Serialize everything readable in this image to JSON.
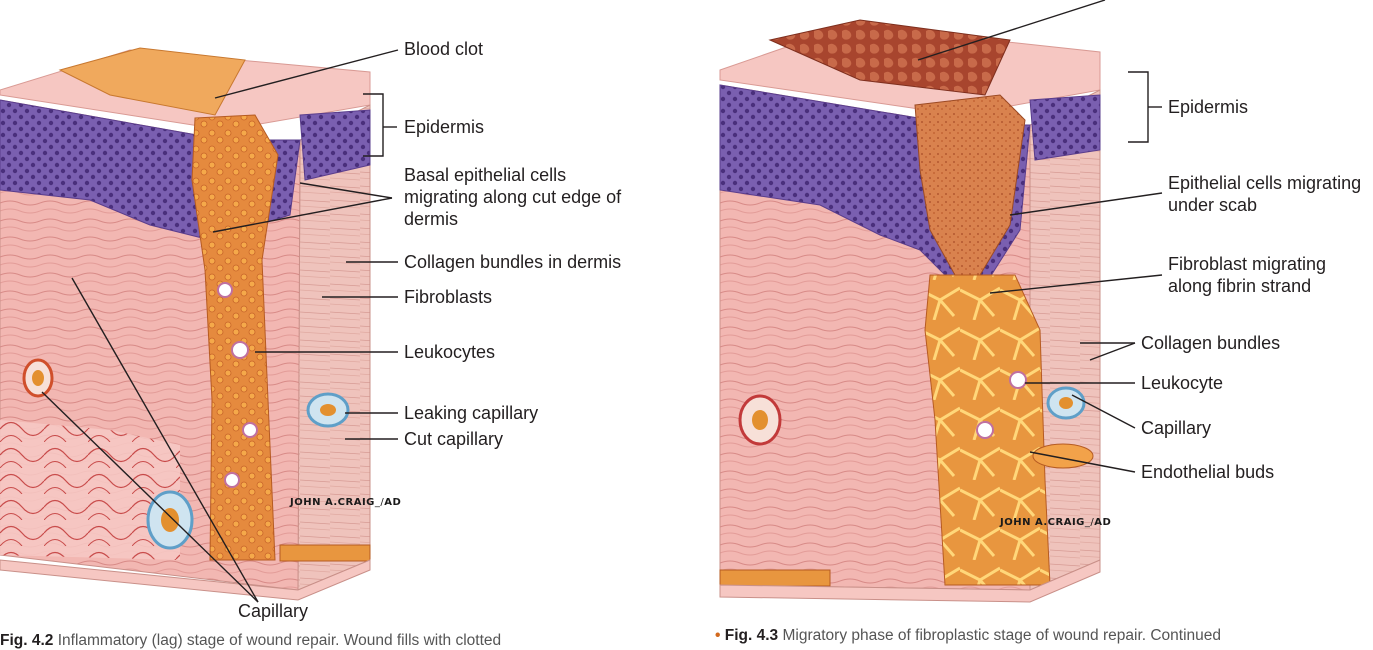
{
  "left_figure": {
    "labels": {
      "blood_clot": "Blood clot",
      "epidermis": "Epidermis",
      "basal_cells": "Basal epithelial cells migrating along cut edge of dermis",
      "collagen": "Collagen bundles in dermis",
      "fibroblasts": "Fibroblasts",
      "leukocytes": "Leukocytes",
      "leaking_capillary": "Leaking capillary",
      "cut_capillary": "Cut capillary",
      "capillary": "Capillary"
    },
    "signature": "JOHN A.CRAIG",
    "signature_suffix": "AD",
    "caption_number": "Fig. 4.2",
    "caption_text": "Inflammatory (lag) stage of wound repair. Wound fills with clotted"
  },
  "right_figure": {
    "labels": {
      "epidermis": "Epidermis",
      "epithelial_cells": "Epithelial cells migrating under scab",
      "fibroblast": "Fibroblast migrating along fibrin strand",
      "collagen": "Collagen bundles",
      "leukocyte": "Leukocyte",
      "capillary": "Capillary",
      "endothelial_buds": "Endothelial buds"
    },
    "signature": "JOHN A.CRAIG",
    "signature_suffix": "AD",
    "caption_bullet": "•",
    "caption_number": "Fig. 4.3",
    "caption_text": "Migratory phase of fibroplastic stage of wound repair. Continued"
  },
  "colors": {
    "epidermis_purple": "#8a6fb8",
    "dermis_pink": "#f2b8b4",
    "clot_orange": "#e39550",
    "scab_brown": "#a9472f"
  }
}
